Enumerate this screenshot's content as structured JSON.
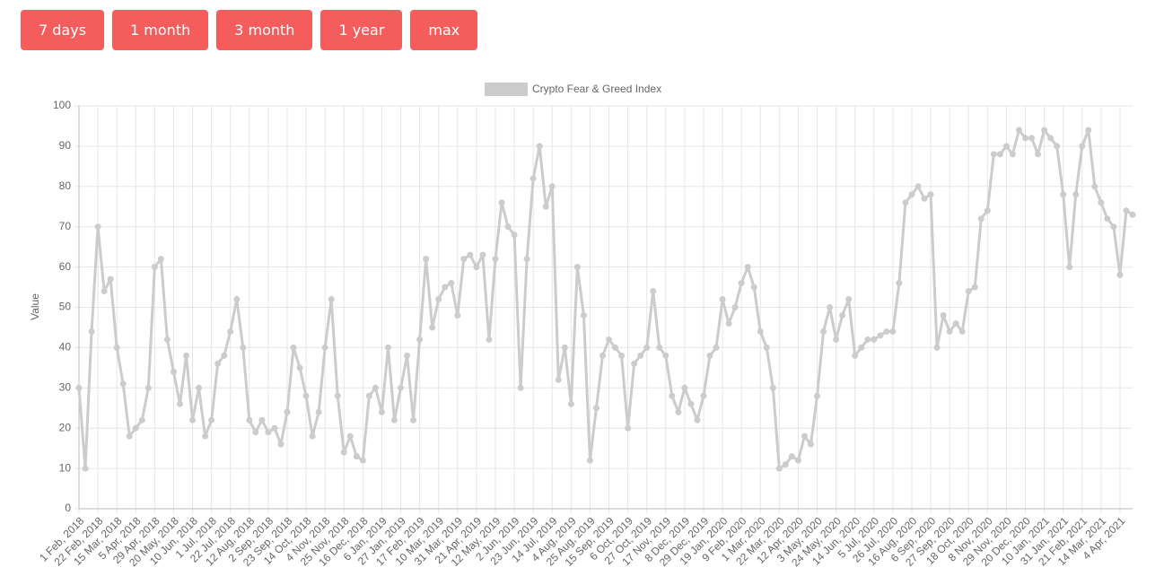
{
  "buttons": [
    "7 days",
    "1 month",
    "3 month",
    "1 year",
    "max"
  ],
  "chart_data": {
    "type": "line",
    "y_label": "Value",
    "legend": "top",
    "grid": true,
    "ylim": [
      0,
      100
    ],
    "yticks": [
      0,
      10,
      20,
      30,
      40,
      50,
      60,
      70,
      80,
      90,
      100
    ],
    "categories": [
      "1 Feb, 2018",
      null,
      null,
      "22 Feb, 2018",
      null,
      null,
      "15 Mar, 2018",
      null,
      null,
      "5 Apr, 2018",
      null,
      null,
      "29 Apr, 2018",
      null,
      null,
      "20 May, 2018",
      null,
      null,
      "10 Jun, 2018",
      null,
      null,
      "1 Jul, 2018",
      null,
      null,
      "22 Jul, 2018",
      null,
      null,
      "12 Aug, 2018",
      null,
      null,
      "2 Sep, 2018",
      null,
      null,
      "23 Sep, 2018",
      null,
      null,
      "14 Oct, 2018",
      null,
      null,
      "4 Nov, 2018",
      null,
      null,
      "25 Nov, 2018",
      null,
      null,
      "16 Dec, 2018",
      null,
      null,
      "6 Jan, 2019",
      null,
      null,
      "27 Jan, 2019",
      null,
      null,
      "17 Feb, 2019",
      null,
      null,
      "10 Mar, 2019",
      null,
      null,
      "31 Mar, 2019",
      null,
      null,
      "21 Apr, 2019",
      null,
      null,
      "12 May, 2019",
      null,
      null,
      "2 Jun, 2019",
      null,
      null,
      "23 Jun, 2019",
      null,
      null,
      "14 Jul, 2019",
      null,
      null,
      "4 Aug, 2019",
      null,
      null,
      "25 Aug, 2019",
      null,
      null,
      "15 Sep, 2019",
      null,
      null,
      "6 Oct, 2019",
      null,
      null,
      "27 Oct, 2019",
      null,
      null,
      "17 Nov, 2019",
      null,
      null,
      "8 Dec, 2019",
      null,
      null,
      "29 Dec, 2019",
      null,
      null,
      "19 Jan, 2020",
      null,
      null,
      "9 Feb, 2020",
      null,
      null,
      "1 Mar, 2020",
      null,
      null,
      "22 Mar, 2020",
      null,
      null,
      "12 Apr, 2020",
      null,
      null,
      "3 May, 2020",
      null,
      null,
      "24 May, 2020",
      null,
      null,
      "14 Jun, 2020",
      null,
      null,
      "5 Jul, 2020",
      null,
      null,
      "26 Jul, 2020",
      null,
      null,
      "16 Aug, 2020",
      null,
      null,
      "6 Sep, 2020",
      null,
      null,
      "27 Sep, 2020",
      null,
      null,
      "18 Oct, 2020",
      null,
      null,
      "8 Nov, 2020",
      null,
      null,
      "29 Nov, 2020",
      null,
      null,
      "20 Dec, 2020",
      null,
      null,
      "10 Jan, 2021",
      null,
      null,
      "31 Jan, 2021",
      null,
      null,
      "21 Feb, 2021",
      null,
      null,
      "14 Mar, 2021",
      null,
      null,
      "4 Apr, 2021",
      null,
      null
    ],
    "series": [
      {
        "name": "Crypto Fear & Greed Index",
        "color": "#cccccc",
        "values": [
          30,
          10,
          44,
          70,
          54,
          57,
          40,
          31,
          18,
          20,
          22,
          30,
          60,
          62,
          42,
          34,
          26,
          38,
          22,
          30,
          18,
          22,
          36,
          38,
          44,
          52,
          40,
          22,
          19,
          22,
          19,
          20,
          16,
          24,
          40,
          35,
          28,
          18,
          24,
          40,
          52,
          28,
          14,
          18,
          13,
          12,
          28,
          30,
          24,
          40,
          22,
          30,
          38,
          22,
          42,
          62,
          45,
          52,
          55,
          56,
          48,
          62,
          63,
          60,
          63,
          42,
          62,
          76,
          70,
          68,
          30,
          62,
          82,
          90,
          75,
          80,
          32,
          40,
          26,
          60,
          48,
          12,
          25,
          38,
          42,
          40,
          38,
          20,
          36,
          38,
          40,
          54,
          40,
          38,
          28,
          24,
          30,
          26,
          22,
          28,
          38,
          40,
          52,
          46,
          50,
          56,
          60,
          55,
          44,
          40,
          30,
          10,
          11,
          13,
          12,
          18,
          16,
          28,
          44,
          50,
          42,
          48,
          52,
          38,
          40,
          42,
          42,
          43,
          44,
          44,
          56,
          76,
          78,
          80,
          77,
          78,
          40,
          48,
          44,
          46,
          44,
          54,
          55,
          72,
          74,
          88,
          88,
          90,
          88,
          94,
          92,
          92,
          88,
          94,
          92,
          90,
          78,
          60,
          78,
          90,
          94,
          80,
          76,
          72,
          70,
          58,
          74,
          73
        ]
      }
    ]
  }
}
